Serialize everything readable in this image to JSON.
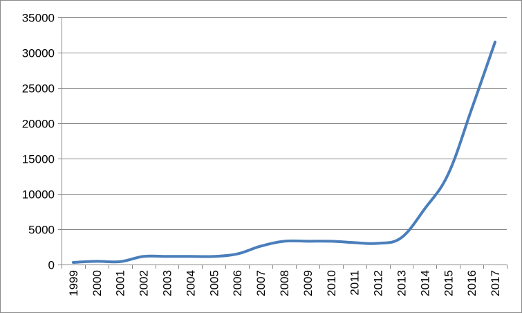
{
  "chart_data": {
    "type": "line",
    "title": "",
    "xlabel": "",
    "ylabel": "",
    "ylim": [
      0,
      35000
    ],
    "yticks": [
      0,
      5000,
      10000,
      15000,
      20000,
      25000,
      30000,
      35000
    ],
    "ytick_labels": [
      "0",
      "5000",
      "10000",
      "15000",
      "20000",
      "25000",
      "30000",
      "35000"
    ],
    "categories": [
      "1999",
      "2000",
      "2001",
      "2002",
      "2003",
      "2004",
      "2005",
      "2006",
      "2007",
      "2008",
      "2009",
      "2010",
      "2011",
      "2012",
      "2013",
      "2014",
      "2015",
      "2016",
      "2017"
    ],
    "series": [
      {
        "name": "",
        "color": "#4A7EBB",
        "smooth": true,
        "values": [
          300,
          450,
          400,
          1150,
          1150,
          1150,
          1150,
          1500,
          2600,
          3300,
          3300,
          3300,
          3100,
          3000,
          3800,
          7900,
          12800,
          22000,
          31500
        ]
      }
    ],
    "grid": "horizontal",
    "legend": "none",
    "gridline_color": "#868686",
    "axis_color": "#868686"
  }
}
